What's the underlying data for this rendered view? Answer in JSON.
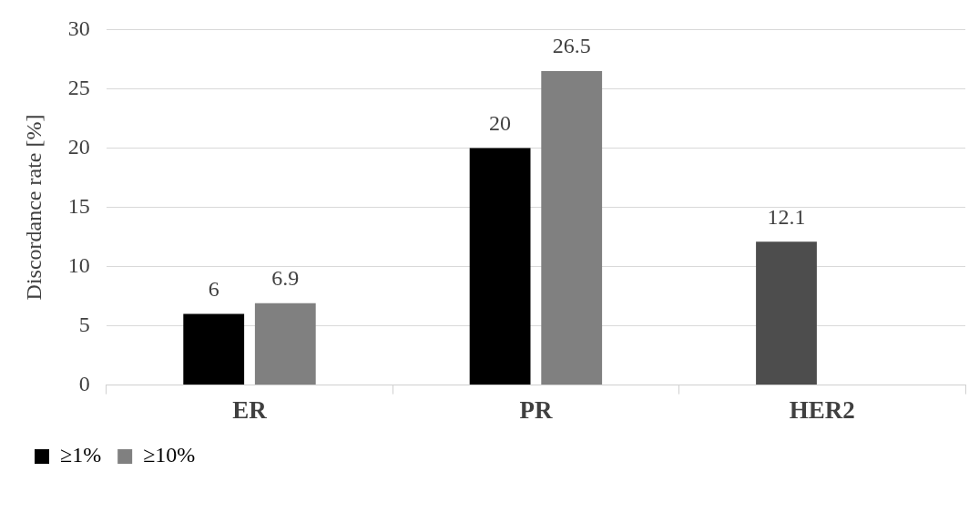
{
  "chart_data": {
    "type": "bar",
    "ylabel": "Discordance rate [%]",
    "categories": [
      "ER",
      "PR",
      "HER2"
    ],
    "series": [
      {
        "name": "≥1%",
        "color": "#000000",
        "colors": [
          "#000000",
          "#000000",
          "#4d4d4d"
        ],
        "values": [
          6,
          20,
          12.1
        ]
      },
      {
        "name": "≥10%",
        "color": "#808080",
        "values": [
          6.9,
          26.5,
          null
        ]
      }
    ],
    "ylim": [
      0,
      30
    ],
    "yticks": [
      0,
      5,
      10,
      15,
      20,
      25,
      30
    ],
    "grid": "y",
    "legend": "bottom",
    "data_labels": true
  }
}
